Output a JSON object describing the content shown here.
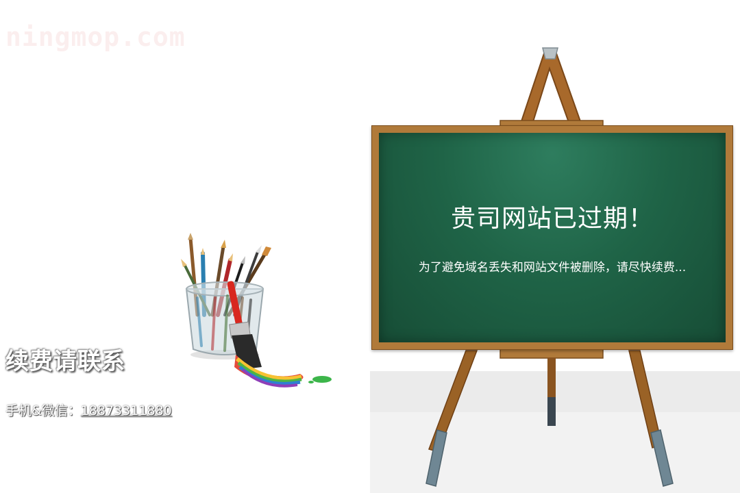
{
  "watermark": {
    "text": "ningmop.com"
  },
  "contact": {
    "title": "续费请联系",
    "phone_label": "手机&微信：",
    "phone_number": "18873311880"
  },
  "board": {
    "title": "贵司网站已过期！",
    "subtitle": "为了避免域名丢失和网站文件被删除，请尽快续费..."
  },
  "colors": {
    "board_green": "#1f6447",
    "frame_wood": "#b07a3a",
    "leg_wood": "#9a6226",
    "foot_gray": "#6f8794"
  }
}
